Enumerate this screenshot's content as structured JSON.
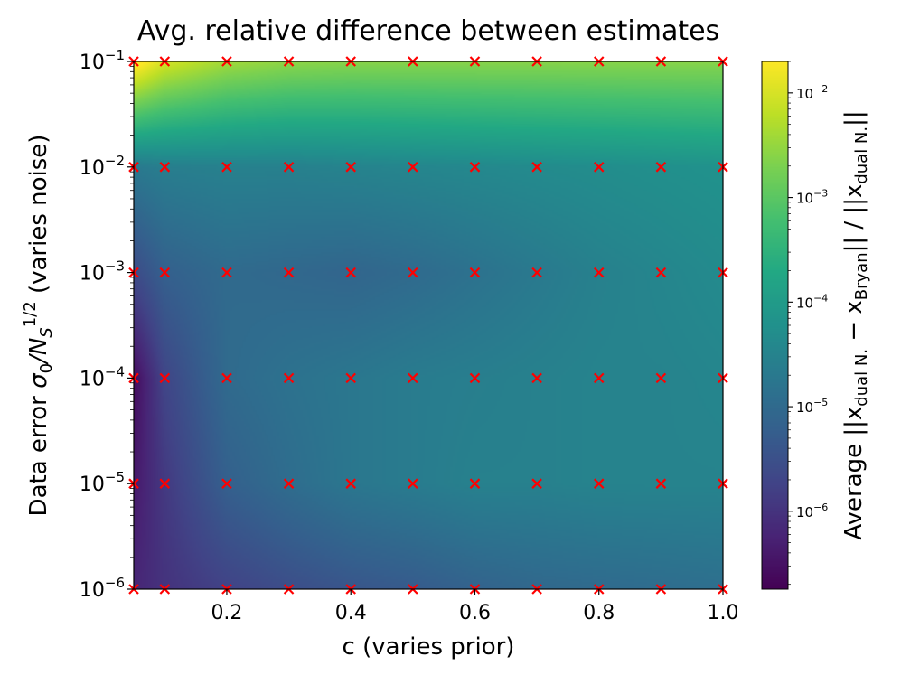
{
  "chart_data": {
    "type": "heatmap",
    "title": "Avg. relative difference between estimates",
    "xlabel": "c (varies prior)",
    "ylabel": {
      "prefix": "Data error ",
      "sigma": "σ",
      "sigma_sub": "0",
      "slash_n": "/N",
      "n_sub": "S",
      "n_sup": "1/2",
      "suffix": " (varies noise)"
    },
    "colorbar_label": {
      "prefix": "Average ||x",
      "sub1": "dual N.",
      "minus": " − x",
      "sub2": "Bryan",
      "mid": "|| / ||x",
      "sub3": "dual N.",
      "suffix": "||"
    },
    "x_scale": "linear",
    "y_scale": "log",
    "xlim": [
      0.05,
      1.0
    ],
    "ylim": [
      1e-06,
      0.1
    ],
    "x_ticks": [
      {
        "value": 0.2,
        "label": "0.2"
      },
      {
        "value": 0.4,
        "label": "0.4"
      },
      {
        "value": 0.6,
        "label": "0.6"
      },
      {
        "value": 0.8,
        "label": "0.8"
      },
      {
        "value": 1.0,
        "label": "1.0"
      }
    ],
    "y_ticks": [
      {
        "value": 1e-06,
        "base": "10",
        "exp": "−6"
      },
      {
        "value": 1e-05,
        "base": "10",
        "exp": "−5"
      },
      {
        "value": 0.0001,
        "base": "10",
        "exp": "−4"
      },
      {
        "value": 0.001,
        "base": "10",
        "exp": "−3"
      },
      {
        "value": 0.01,
        "base": "10",
        "exp": "−2"
      },
      {
        "value": 0.1,
        "base": "10",
        "exp": "−1"
      }
    ],
    "colorbar": {
      "scale": "log",
      "colormap": "viridis",
      "range": [
        1.8e-07,
        0.02
      ],
      "ticks": [
        {
          "value": 1e-06,
          "base": "10",
          "exp": "−6"
        },
        {
          "value": 1e-05,
          "base": "10",
          "exp": "−5"
        },
        {
          "value": 0.0001,
          "base": "10",
          "exp": "−4"
        },
        {
          "value": 0.001,
          "base": "10",
          "exp": "−3"
        },
        {
          "value": 0.01,
          "base": "10",
          "exp": "−2"
        }
      ]
    },
    "sample_points": {
      "marker": "x",
      "color": "#ff0000",
      "c_values": [
        0.05,
        0.1,
        0.2,
        0.3,
        0.4,
        0.5,
        0.6,
        0.7,
        0.8,
        0.9,
        1.0
      ],
      "noise_values": [
        1e-06,
        1e-05,
        0.0001,
        0.001,
        0.01,
        0.1
      ]
    },
    "grid_c": [
      0.05,
      0.1,
      0.2,
      0.3,
      0.4,
      0.5,
      0.6,
      0.7,
      0.8,
      0.9,
      1.0
    ],
    "grid_log10_noise": [
      -6,
      -5,
      -4,
      -3,
      -2,
      -1
    ],
    "log10_values": [
      [
        -6.2,
        -6.0,
        -5.75,
        -5.55,
        -5.4,
        -5.3,
        -5.15,
        -5.05,
        -5.0,
        -4.95,
        -4.9
      ],
      [
        -6.4,
        -5.9,
        -5.2,
        -4.95,
        -4.75,
        -4.65,
        -4.55,
        -4.55,
        -4.5,
        -4.5,
        -4.5
      ],
      [
        -6.6,
        -5.7,
        -5.0,
        -4.85,
        -4.75,
        -4.65,
        -4.6,
        -4.55,
        -4.5,
        -4.5,
        -4.45
      ],
      [
        -5.6,
        -5.2,
        -5.0,
        -5.05,
        -5.1,
        -5.0,
        -4.85,
        -4.7,
        -4.55,
        -4.45,
        -4.35
      ],
      [
        -4.7,
        -4.6,
        -4.55,
        -4.55,
        -4.5,
        -4.45,
        -4.4,
        -4.35,
        -4.3,
        -4.25,
        -4.2
      ],
      [
        -1.5,
        -2.0,
        -2.4,
        -2.55,
        -2.6,
        -2.6,
        -2.6,
        -2.6,
        -2.6,
        -2.6,
        -2.6
      ]
    ]
  }
}
